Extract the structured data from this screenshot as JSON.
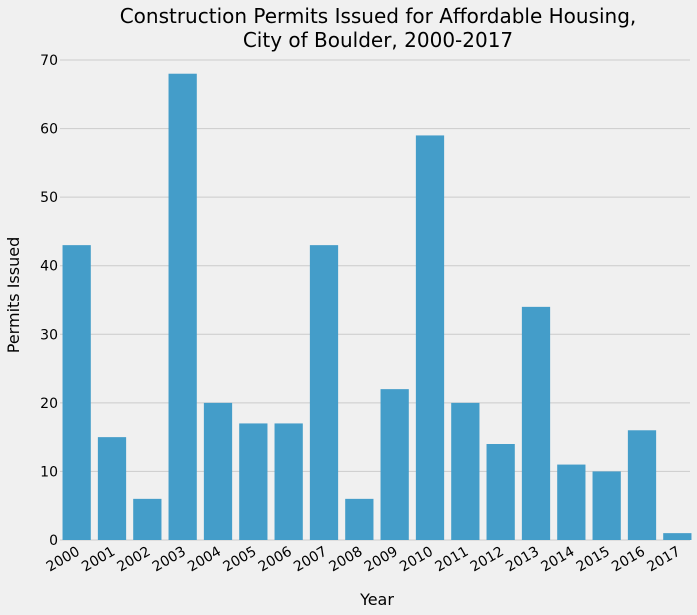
{
  "chart_data": {
    "type": "bar",
    "title_lines": [
      "Construction Permits Issued for Affordable Housing,",
      "City of Boulder, 2000-2017"
    ],
    "xlabel": "Year",
    "ylabel": "Permits Issued",
    "categories": [
      "2000",
      "2001",
      "2002",
      "2003",
      "2004",
      "2005",
      "2006",
      "2007",
      "2008",
      "2009",
      "2010",
      "2011",
      "2012",
      "2013",
      "2014",
      "2015",
      "2016",
      "2017"
    ],
    "values": [
      43,
      15,
      6,
      68,
      20,
      17,
      17,
      43,
      6,
      22,
      59,
      20,
      14,
      34,
      11,
      10,
      16,
      1
    ],
    "ylim": [
      0,
      70
    ],
    "yticks": [
      0,
      10,
      20,
      30,
      40,
      50,
      60,
      70
    ],
    "grid": "horizontal",
    "bar_color": "#449dc9",
    "background_color": "#f0f0f0"
  }
}
